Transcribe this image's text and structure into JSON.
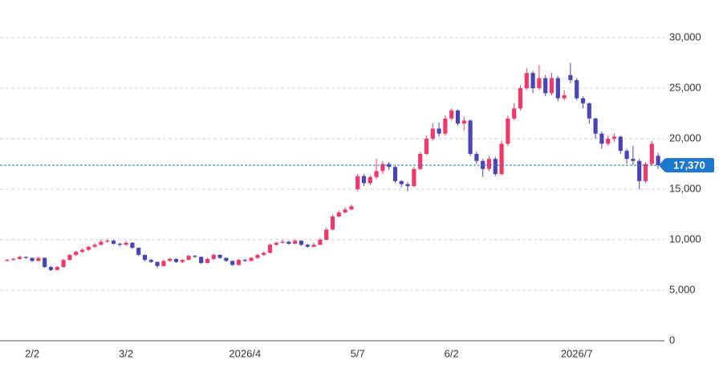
{
  "chart_data": {
    "type": "candlestick",
    "categories": [
      null,
      null,
      null,
      null,
      "2/2",
      null,
      null,
      null,
      null,
      null,
      null,
      null,
      null,
      null,
      null,
      null,
      null,
      null,
      null,
      "3/2",
      null,
      null,
      null,
      null,
      null,
      null,
      null,
      null,
      null,
      null,
      null,
      null,
      null,
      null,
      null,
      null,
      null,
      null,
      "2026/4",
      null,
      null,
      null,
      null,
      null,
      null,
      null,
      null,
      null,
      null,
      null,
      null,
      null,
      null,
      null,
      null,
      null,
      "5/7",
      null,
      null,
      null,
      null,
      null,
      null,
      null,
      null,
      null,
      null,
      null,
      null,
      null,
      null,
      "6/2",
      null,
      null,
      null,
      null,
      null,
      null,
      null,
      null,
      null,
      null,
      null,
      null,
      null,
      null,
      null,
      null,
      null,
      null,
      null,
      "2026/7",
      null,
      null,
      null,
      null,
      null,
      null,
      null,
      null,
      null,
      null,
      null,
      null,
      null
    ],
    "open": [
      7900,
      8000,
      8100,
      8300,
      8200,
      7900,
      8200,
      7300,
      7000,
      7300,
      8000,
      8500,
      8800,
      9000,
      9300,
      9500,
      9800,
      9900,
      9600,
      9500,
      9700,
      9200,
      8500,
      8000,
      7800,
      7400,
      7900,
      8100,
      7800,
      8000,
      8400,
      8300,
      7700,
      8100,
      8500,
      8200,
      7900,
      7500,
      8000,
      7900,
      8200,
      8500,
      8700,
      9500,
      9700,
      9800,
      9600,
      9900,
      9500,
      9300,
      9500,
      10000,
      11000,
      12300,
      12700,
      13000,
      15000,
      16300,
      15600,
      16200,
      16800,
      17500,
      17200,
      15800,
      15500,
      15300,
      17000,
      18500,
      20000,
      21000,
      20500,
      22000,
      22800,
      21500,
      21800,
      18500,
      17800,
      17000,
      18000,
      16500,
      19500,
      22000,
      23000,
      25000,
      26500,
      25000,
      26000,
      24500,
      26000,
      24000,
      26300,
      25800,
      24000,
      23500,
      22000,
      20500,
      19500,
      20000,
      20200,
      18800,
      18000,
      17800,
      15800,
      17500,
      18300
    ],
    "high": [
      8100,
      8200,
      8400,
      8350,
      8250,
      8300,
      8250,
      7400,
      7400,
      8100,
      8600,
      8900,
      9150,
      9400,
      9700,
      10000,
      10100,
      10000,
      9700,
      9850,
      9750,
      9250,
      8550,
      8100,
      7850,
      8000,
      8200,
      8150,
      8100,
      8500,
      8500,
      8350,
      8200,
      8600,
      8550,
      8250,
      7950,
      8100,
      8100,
      8300,
      8600,
      8850,
      9600,
      9800,
      10000,
      9900,
      10050,
      9950,
      9600,
      9700,
      10200,
      11200,
      12500,
      12900,
      13200,
      13500,
      16500,
      16500,
      16400,
      18000,
      17800,
      17700,
      17300,
      15900,
      15700,
      17200,
      18700,
      20300,
      21500,
      21600,
      22300,
      23000,
      22900,
      22200,
      21900,
      18700,
      18000,
      18300,
      18200,
      19800,
      22300,
      23500,
      25300,
      27000,
      26700,
      27300,
      26300,
      26500,
      26200,
      24800,
      27500,
      26000,
      24200,
      23600,
      22100,
      20700,
      20300,
      20500,
      20300,
      19000,
      19300,
      18000,
      17700,
      19800,
      18600
    ],
    "low": [
      7850,
      7950,
      8050,
      8100,
      7800,
      7850,
      7200,
      6900,
      6950,
      7250,
      7950,
      8400,
      8700,
      8900,
      9200,
      9400,
      9700,
      9500,
      9350,
      9400,
      9100,
      8400,
      7900,
      7700,
      7200,
      7350,
      7800,
      7700,
      7700,
      7950,
      8200,
      7600,
      7650,
      8000,
      8100,
      7800,
      7400,
      7450,
      7800,
      7850,
      8100,
      8400,
      8650,
      9400,
      9600,
      9500,
      9550,
      9400,
      9200,
      9250,
      9450,
      9950,
      10950,
      12200,
      12600,
      12900,
      14800,
      15300,
      15400,
      16000,
      16500,
      16900,
      15600,
      15200,
      14800,
      15200,
      16900,
      18400,
      19800,
      20200,
      20300,
      21800,
      21300,
      20800,
      18300,
      17500,
      16200,
      16800,
      16300,
      16400,
      19300,
      21800,
      22800,
      24800,
      24500,
      24800,
      24200,
      24300,
      23700,
      23800,
      25500,
      23800,
      23000,
      21500,
      20000,
      19000,
      19300,
      19700,
      18500,
      17500,
      17400,
      15000,
      15600,
      17300,
      17000
    ],
    "close": [
      8000,
      8100,
      8300,
      8200,
      7900,
      8200,
      7300,
      7000,
      7300,
      8000,
      8500,
      8800,
      9000,
      9300,
      9500,
      9800,
      9900,
      9600,
      9500,
      9700,
      9200,
      8500,
      8000,
      7800,
      7400,
      7900,
      8100,
      7800,
      8000,
      8400,
      8300,
      7700,
      8100,
      8500,
      8200,
      7900,
      7500,
      8000,
      7900,
      8200,
      8500,
      8700,
      9500,
      9700,
      9800,
      9600,
      9900,
      9500,
      9300,
      9500,
      10000,
      11000,
      12300,
      12700,
      13000,
      13300,
      16300,
      15600,
      16200,
      16800,
      17500,
      17200,
      15800,
      15500,
      15300,
      17000,
      18500,
      20000,
      21000,
      20500,
      22000,
      22800,
      21500,
      21800,
      18500,
      17800,
      17000,
      18000,
      16500,
      19500,
      22000,
      23000,
      25000,
      26500,
      25000,
      26000,
      24500,
      26000,
      24000,
      24300,
      25800,
      24000,
      23500,
      22000,
      20500,
      19500,
      20000,
      20200,
      18800,
      18000,
      17800,
      15800,
      17500,
      19500,
      17370
    ],
    "up_color": "#f0396b",
    "down_color": "#4b44b6",
    "ylim": [
      0,
      30000
    ],
    "yticks": [
      0,
      {
        "value": 5000,
        "label": "5,000"
      },
      {
        "value": 10000,
        "label": "10,000"
      },
      {
        "value": 15000,
        "label": "15,000"
      },
      {
        "value": 20000,
        "label": "20,000"
      },
      {
        "value": 25000,
        "label": "25,000"
      },
      {
        "value": 30000,
        "label": "30,000"
      }
    ],
    "grid": true,
    "last_price": {
      "value": 17370,
      "label": "17,370"
    }
  }
}
